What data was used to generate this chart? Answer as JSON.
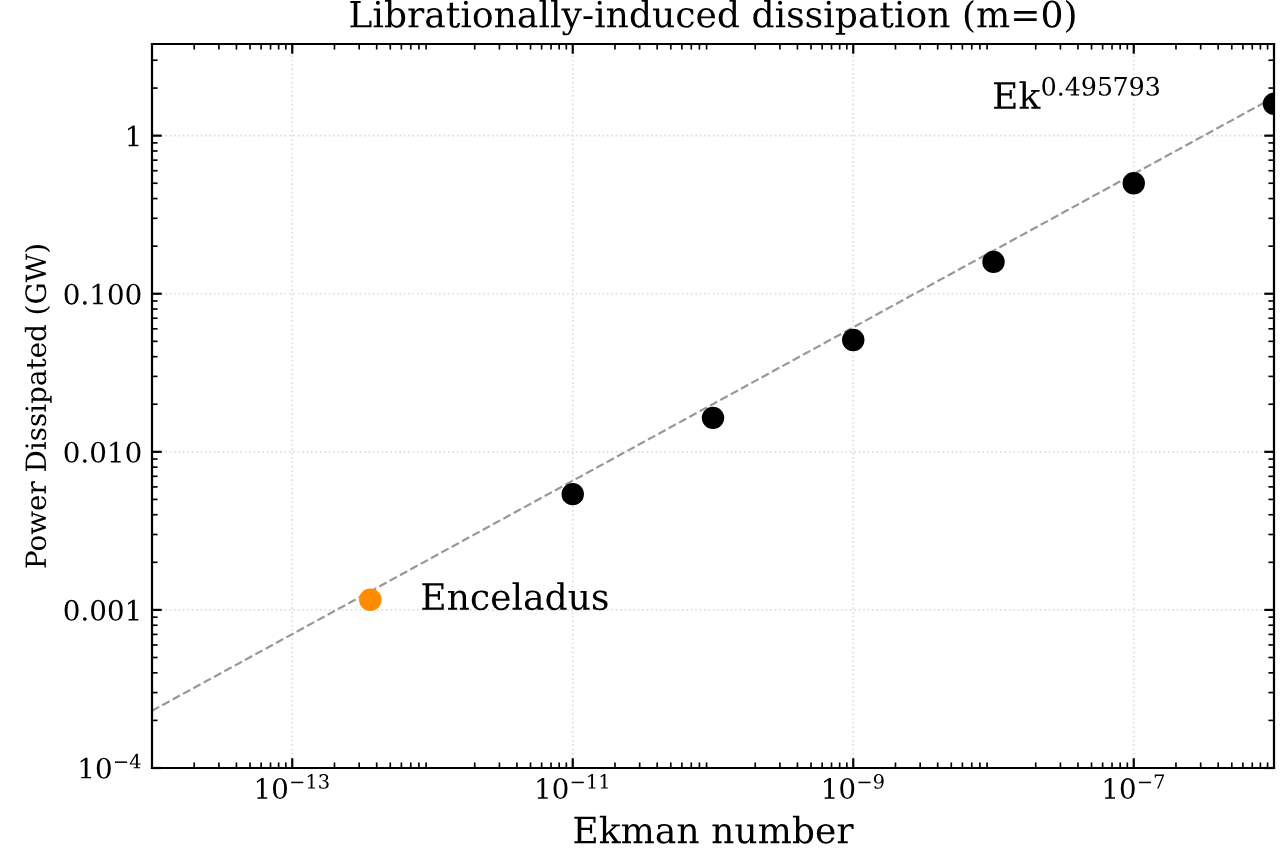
{
  "chart_data": {
    "type": "scatter",
    "title": "Librationally-induced dissipation (m=0)",
    "xlabel": "Ekman number",
    "ylabel": "Power Dissipated (GW)",
    "log": "xy",
    "grid": true,
    "marker": "circle",
    "xlim": [
      1e-14,
      1e-06
    ],
    "ylim": [
      0.0001,
      3.8
    ],
    "xticks": [
      {
        "value": 1e-13,
        "label": "10$^{−13}$"
      },
      {
        "value": 1e-11,
        "label": "10$^{−11}$"
      },
      {
        "value": 1e-09,
        "label": "10$^{−9}$"
      },
      {
        "value": 1e-07,
        "label": "10$^{−7}$"
      }
    ],
    "yticks": [
      {
        "value": 0.0001,
        "label": "10$^{−4}$"
      },
      {
        "value": 0.001,
        "label": "0.001"
      },
      {
        "value": 0.01,
        "label": "0.010"
      },
      {
        "value": 0.1,
        "label": "0.100"
      },
      {
        "value": 1,
        "label": "1"
      }
    ],
    "series": [
      {
        "type": "line",
        "color": "#999999",
        "line_style": "dashed",
        "marker": "none",
        "x": [
          1e-14,
          1e-06
        ],
        "values": [
          0.00023,
          1.75
        ]
      },
      {
        "color": "#000000",
        "x": [
          1e-11,
          1e-10,
          1e-09,
          1e-08,
          1e-07,
          1e-06
        ],
        "values": [
          0.0054,
          0.0164,
          0.051,
          0.159,
          0.5,
          1.59
        ]
      },
      {
        "name": "Enceladus",
        "color": "#ff8c00",
        "x": [
          3.6e-13
        ],
        "values": [
          0.00116
        ]
      }
    ],
    "annotations": [
      "Ek$^{0.495793}$"
    ]
  }
}
